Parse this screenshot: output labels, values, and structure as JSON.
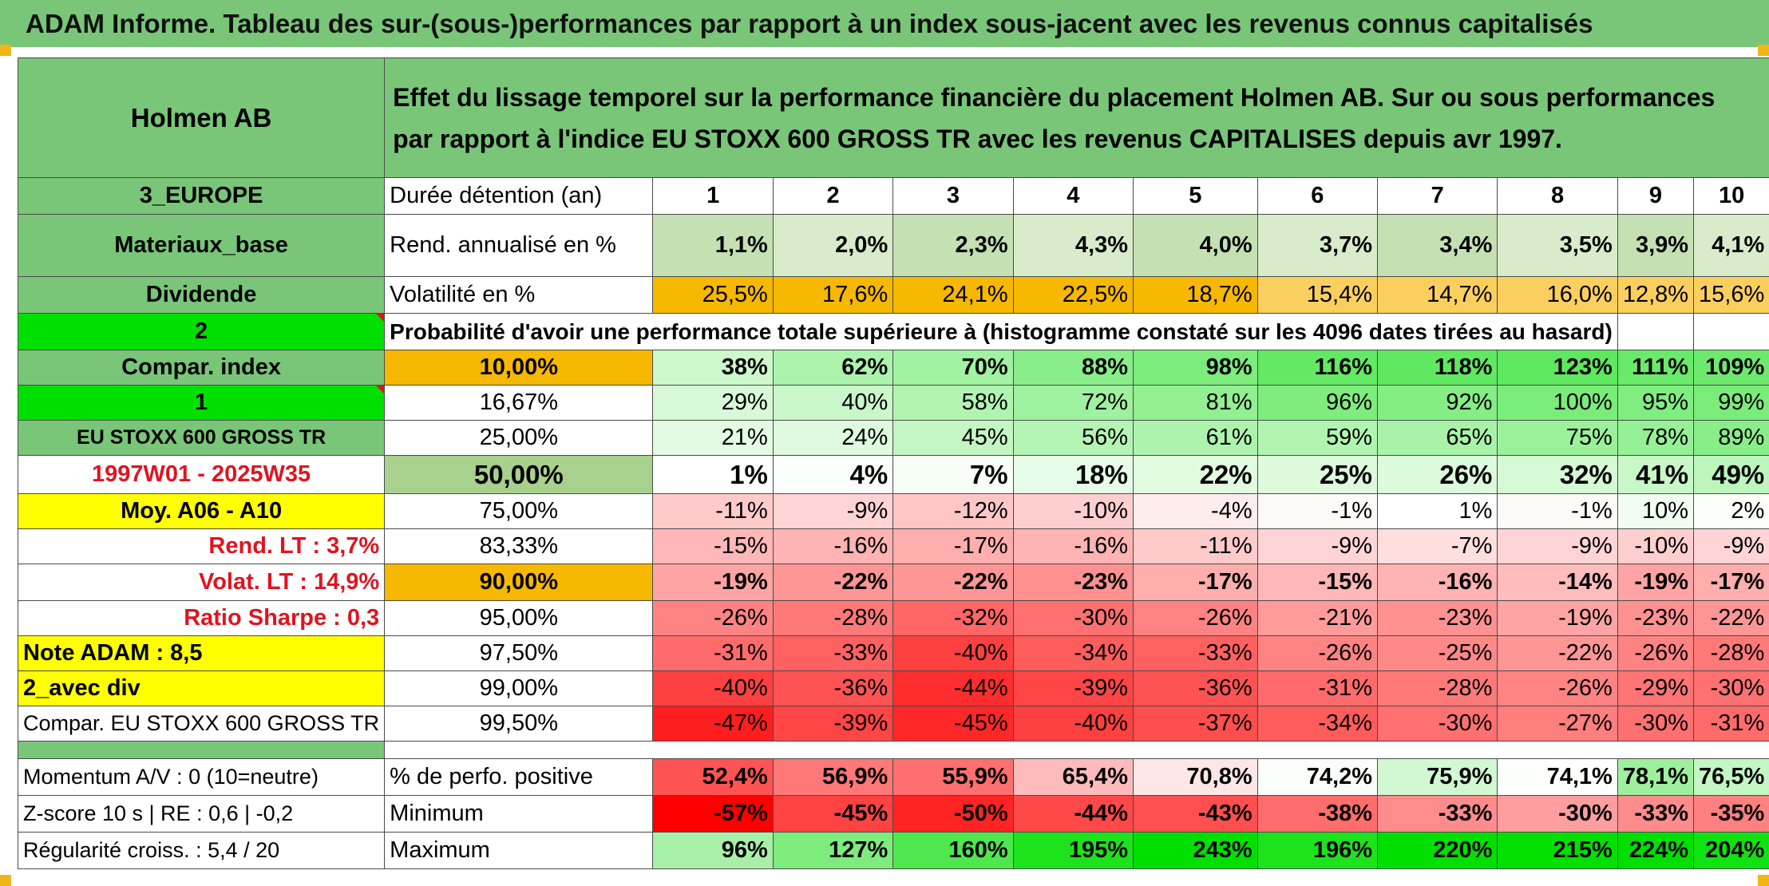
{
  "banner": "ADAM Informe. Tableau des sur-(sous-)performances par rapport à un index sous-jacent avec les revenus connus capitalisés",
  "header": {
    "company": "Holmen AB",
    "description": "Effet du lissage temporel sur la performance financière du placement Holmen AB. Sur ou sous performances par rapport à l'indice EU STOXX 600 GROSS TR avec les revenus CAPITALISES depuis avr 1997."
  },
  "info": {
    "region": "3_EUROPE",
    "sector": "Materiaux_base",
    "dividend": "Dividende",
    "box2": "2",
    "compar_index": "Compar. index",
    "box1": "1",
    "index_name": "EU STOXX 600 GROSS TR",
    "period": "1997W01 - 2025W35",
    "avg": "Moy. A06 - A10",
    "rend_lt": "Rend. LT :   3,7%",
    "volat_lt": "Volat. LT :   14,9%",
    "sharpe": "Ratio Sharpe :    0,3",
    "note": "Note ADAM : 8,5",
    "div_mode": "2_avec div",
    "compar_full": "Compar. EU STOXX 600 GROSS TR",
    "momentum": "Momentum A/V : 0 (10=neutre)",
    "zscore": "Z-score 10 s | RE : 0,6 | -0,2",
    "regularity": "Régularité croiss. : 5,4 / 20"
  },
  "labels": {
    "duration": "Durée détention (an)",
    "rend": "Rend. annualisé en %",
    "vol": "Volatilité en %",
    "prob": "Probabilité d'avoir une performance totale supérieure à (histogramme constaté sur les 4096 dates tirées au hasard)",
    "pct_pos": "% de perfo. positive",
    "min": "Minimum",
    "max": "Maximum"
  },
  "years": [
    "1",
    "2",
    "3",
    "4",
    "5",
    "6",
    "7",
    "8",
    "9",
    "10"
  ],
  "rend": [
    "1,1%",
    "2,0%",
    "2,3%",
    "4,3%",
    "4,0%",
    "3,7%",
    "3,4%",
    "3,5%",
    "3,9%",
    "4,1%"
  ],
  "vol": [
    "25,5%",
    "17,6%",
    "24,1%",
    "22,5%",
    "18,7%",
    "15,4%",
    "14,7%",
    "16,0%",
    "12,8%",
    "15,6%"
  ],
  "prob_rows": [
    {
      "p": "10,00%",
      "v": [
        "38%",
        "62%",
        "70%",
        "88%",
        "98%",
        "116%",
        "118%",
        "123%",
        "111%",
        "109%"
      ]
    },
    {
      "p": "16,67%",
      "v": [
        "29%",
        "40%",
        "58%",
        "72%",
        "81%",
        "96%",
        "92%",
        "100%",
        "95%",
        "99%"
      ]
    },
    {
      "p": "25,00%",
      "v": [
        "21%",
        "24%",
        "45%",
        "56%",
        "61%",
        "59%",
        "65%",
        "75%",
        "78%",
        "89%"
      ]
    },
    {
      "p": "50,00%",
      "v": [
        "1%",
        "4%",
        "7%",
        "18%",
        "22%",
        "25%",
        "26%",
        "32%",
        "41%",
        "49%"
      ]
    },
    {
      "p": "75,00%",
      "v": [
        "-11%",
        "-9%",
        "-12%",
        "-10%",
        "-4%",
        "-1%",
        "1%",
        "-1%",
        "10%",
        "2%"
      ]
    },
    {
      "p": "83,33%",
      "v": [
        "-15%",
        "-16%",
        "-17%",
        "-16%",
        "-11%",
        "-9%",
        "-7%",
        "-9%",
        "-10%",
        "-9%"
      ]
    },
    {
      "p": "90,00%",
      "v": [
        "-19%",
        "-22%",
        "-22%",
        "-23%",
        "-17%",
        "-15%",
        "-16%",
        "-14%",
        "-19%",
        "-17%"
      ]
    },
    {
      "p": "95,00%",
      "v": [
        "-26%",
        "-28%",
        "-32%",
        "-30%",
        "-26%",
        "-21%",
        "-23%",
        "-19%",
        "-23%",
        "-22%"
      ]
    },
    {
      "p": "97,50%",
      "v": [
        "-31%",
        "-33%",
        "-40%",
        "-34%",
        "-33%",
        "-26%",
        "-25%",
        "-22%",
        "-26%",
        "-28%"
      ]
    },
    {
      "p": "99,00%",
      "v": [
        "-40%",
        "-36%",
        "-44%",
        "-39%",
        "-36%",
        "-31%",
        "-28%",
        "-26%",
        "-29%",
        "-30%"
      ]
    },
    {
      "p": "99,50%",
      "v": [
        "-47%",
        "-39%",
        "-45%",
        "-40%",
        "-37%",
        "-34%",
        "-30%",
        "-27%",
        "-30%",
        "-31%"
      ]
    }
  ],
  "pct_pos": [
    "52,4%",
    "56,9%",
    "55,9%",
    "65,4%",
    "70,8%",
    "74,2%",
    "75,9%",
    "74,1%",
    "78,1%",
    "76,5%"
  ],
  "min": [
    "-57%",
    "-45%",
    "-50%",
    "-44%",
    "-43%",
    "-38%",
    "-33%",
    "-30%",
    "-33%",
    "-35%"
  ],
  "max": [
    "96%",
    "127%",
    "160%",
    "195%",
    "243%",
    "196%",
    "220%",
    "215%",
    "224%",
    "204%"
  ],
  "colors": {
    "header_green": "#79c679",
    "highlight_yellow": "#ffff00",
    "bright_green": "#00e000",
    "orange": "#f6b800",
    "red_text": "#e0141e"
  }
}
